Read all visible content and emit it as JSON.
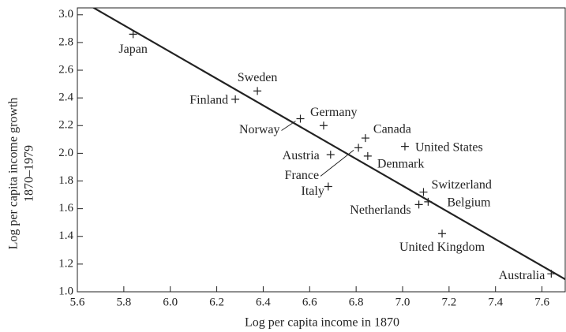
{
  "chart_data": {
    "type": "scatter",
    "xlabel": "Log per capita income in 1870",
    "ylabel": [
      "Log per capita income growth",
      "1870–1979"
    ],
    "xlim": [
      5.6,
      7.7
    ],
    "ylim": [
      1.0,
      3.05
    ],
    "xticks": [
      5.6,
      5.8,
      {
        "value": 6,
        "label": "6.0"
      },
      6.2,
      6.4,
      6.6,
      6.8,
      {
        "value": 7,
        "label": "7.0"
      },
      7.2,
      7.4,
      7.6
    ],
    "yticks": [
      {
        "value": 1,
        "label": "1.0"
      },
      1.2,
      1.4,
      1.6,
      1.8,
      {
        "value": 2,
        "label": "2.0"
      },
      2.2,
      2.4,
      2.6,
      2.8,
      {
        "value": 3,
        "label": "3.0"
      }
    ],
    "color": "#222",
    "labels": [
      "Japan",
      "Sweden",
      "Finland",
      "Norway",
      "Germany",
      "Canada",
      "United States",
      "Austria",
      "France",
      "Denmark",
      "Italy",
      "Switzerland",
      "Belgium",
      "Netherlands",
      "United Kingdom",
      "Australia"
    ],
    "x": [
      5.84,
      6.375,
      6.28,
      6.56,
      6.66,
      6.84,
      7.01,
      6.69,
      6.81,
      6.85,
      6.68,
      7.09,
      7.11,
      7.07,
      7.17,
      7.64
    ],
    "y": [
      2.86,
      2.45,
      2.39,
      2.25,
      2.2,
      2.11,
      2.05,
      1.99,
      2.04,
      1.98,
      1.76,
      1.72,
      1.65,
      1.63,
      1.42,
      1.13
    ],
    "fit_line": {
      "x": [
        5.65,
        7.7
      ],
      "y": [
        3.07,
        1.09
      ]
    }
  }
}
